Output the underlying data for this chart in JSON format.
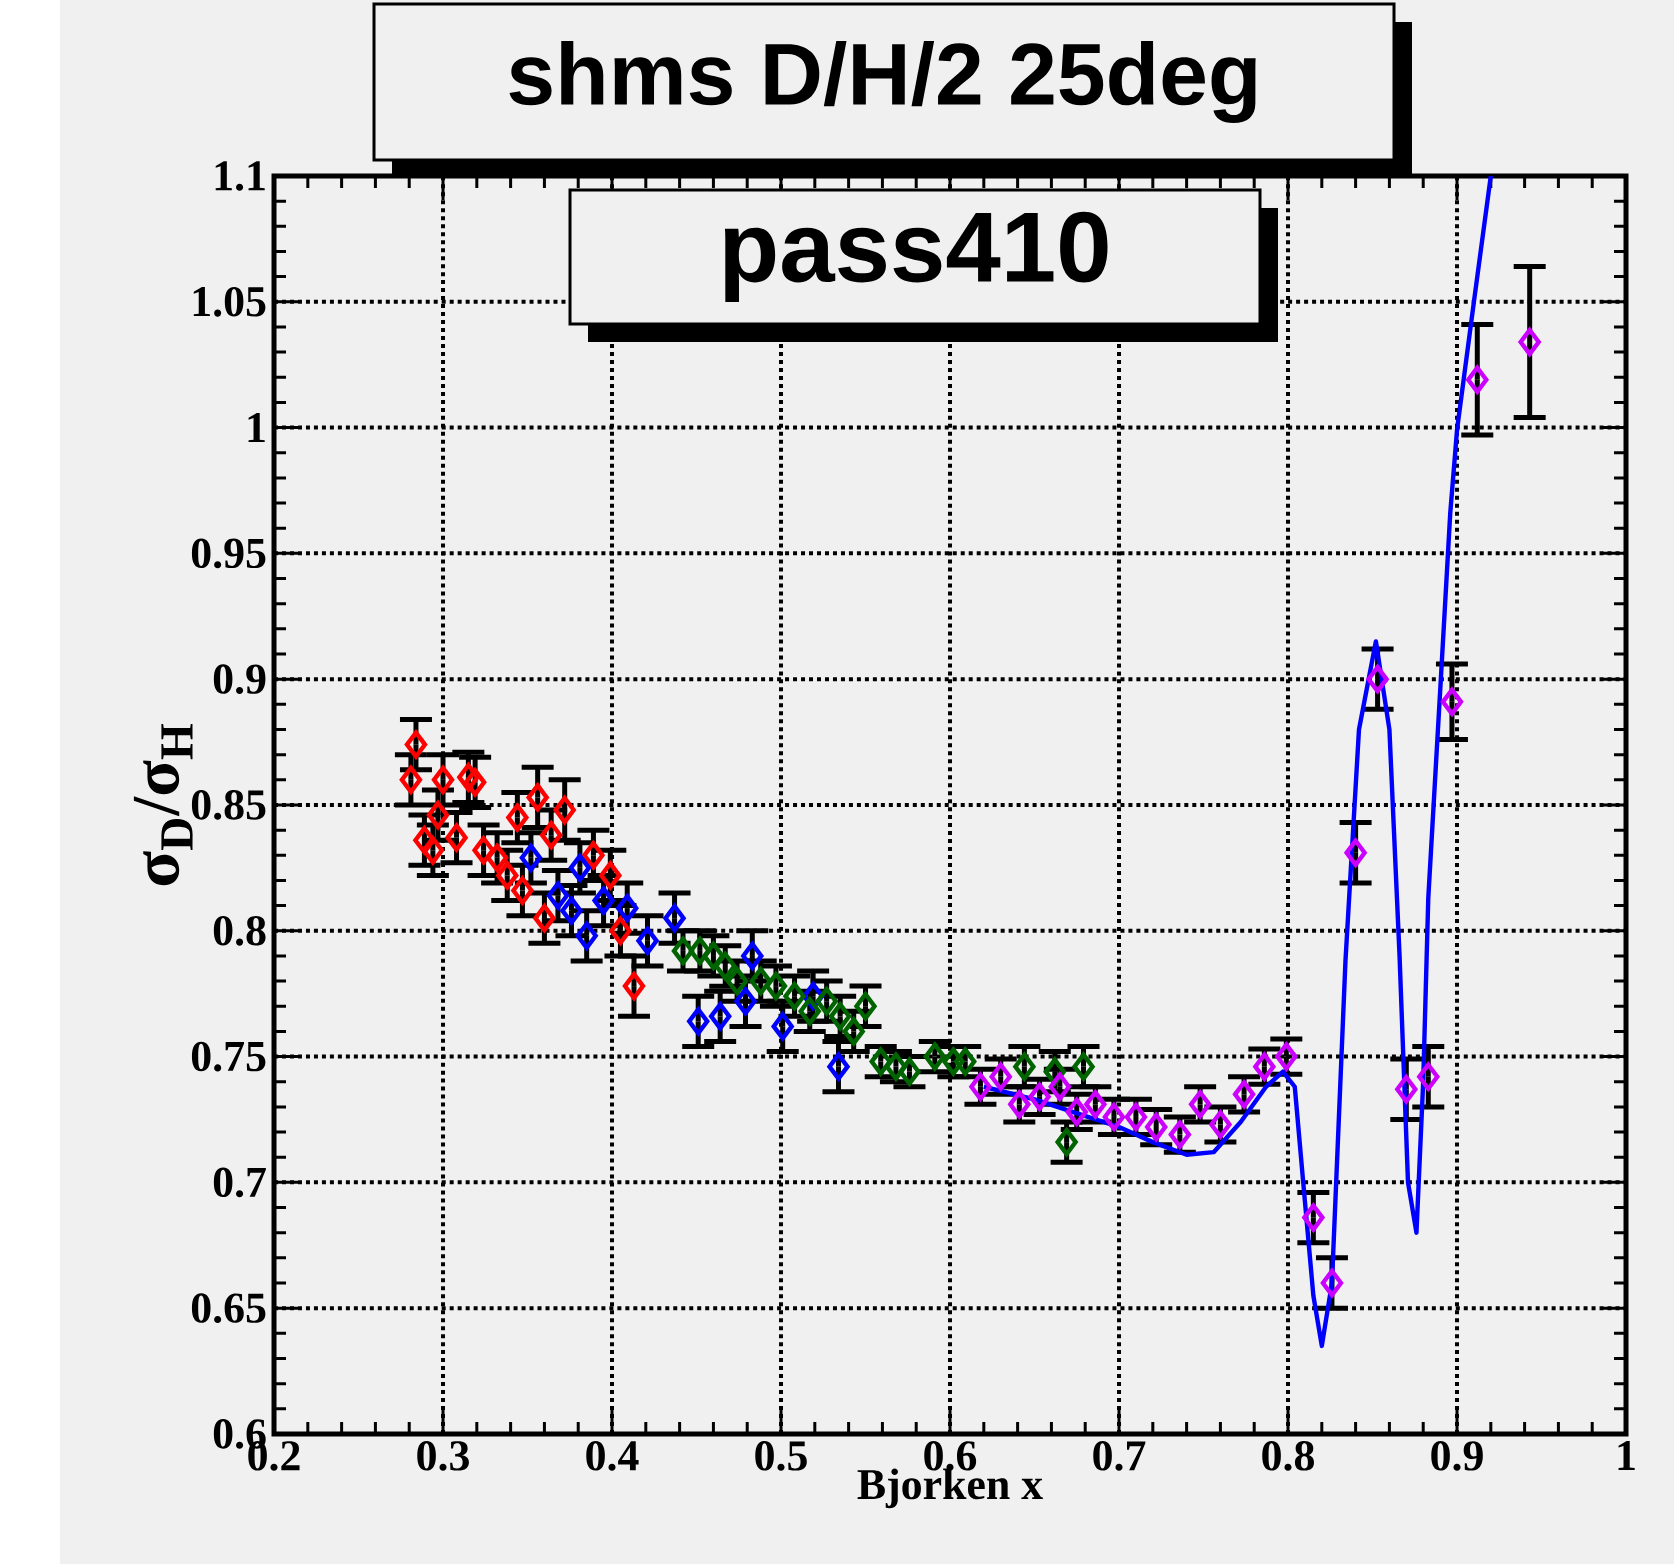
{
  "chart_data": {
    "type": "scatter",
    "title": "shms D/H/2 25deg",
    "subtitle": "pass410",
    "xlabel": "Bjorken x",
    "ylabel": "σ$_{D}$/σ$_{H}$",
    "xlim": [
      0.2,
      1
    ],
    "ylim": [
      0.6,
      1.1
    ],
    "xticks": [
      0.2,
      0.3,
      0.4,
      0.5,
      0.6,
      0.7,
      0.8,
      0.9,
      1
    ],
    "yticks": [
      0.6,
      0.65,
      0.7,
      0.75,
      0.8,
      0.85,
      0.9,
      0.95,
      1,
      1.05,
      1.1
    ],
    "grid": true,
    "marker": "diamond",
    "series": [
      {
        "color": "#ff0000",
        "x": [
          0.284,
          0.281,
          0.3,
          0.297,
          0.315,
          0.319,
          0.289,
          0.294,
          0.308,
          0.324,
          0.332,
          0.338,
          0.344,
          0.356,
          0.347,
          0.36,
          0.372,
          0.364,
          0.389,
          0.399,
          0.405,
          0.413
        ],
        "values": [
          0.874,
          0.86,
          0.86,
          0.846,
          0.861,
          0.859,
          0.836,
          0.832,
          0.837,
          0.832,
          0.829,
          0.822,
          0.845,
          0.853,
          0.816,
          0.805,
          0.848,
          0.838,
          0.83,
          0.822,
          0.8,
          0.778
        ],
        "errors": [
          0.01,
          0.01,
          0.01,
          0.01,
          0.01,
          0.01,
          0.01,
          0.01,
          0.01,
          0.01,
          0.01,
          0.01,
          0.01,
          0.012,
          0.01,
          0.01,
          0.012,
          0.01,
          0.01,
          0.01,
          0.01,
          0.012
        ]
      },
      {
        "color": "#0000ff",
        "x": [
          0.352,
          0.381,
          0.368,
          0.376,
          0.385,
          0.395,
          0.409,
          0.421,
          0.437,
          0.451,
          0.464,
          0.479,
          0.483,
          0.501,
          0.519,
          0.534
        ],
        "values": [
          0.829,
          0.825,
          0.814,
          0.808,
          0.798,
          0.812,
          0.809,
          0.796,
          0.805,
          0.764,
          0.766,
          0.772,
          0.79,
          0.762,
          0.774,
          0.746
        ],
        "errors": [
          0.01,
          0.01,
          0.01,
          0.01,
          0.01,
          0.01,
          0.01,
          0.01,
          0.01,
          0.01,
          0.01,
          0.01,
          0.01,
          0.01,
          0.01,
          0.01
        ]
      },
      {
        "color": "#006400",
        "x": [
          0.442,
          0.452,
          0.46,
          0.467,
          0.474,
          0.488,
          0.497,
          0.508,
          0.517,
          0.527,
          0.535,
          0.543,
          0.55,
          0.559,
          0.568,
          0.576,
          0.591,
          0.602,
          0.609,
          0.644,
          0.662,
          0.679,
          0.669
        ],
        "values": [
          0.792,
          0.792,
          0.79,
          0.786,
          0.78,
          0.78,
          0.778,
          0.774,
          0.768,
          0.772,
          0.766,
          0.76,
          0.77,
          0.748,
          0.746,
          0.744,
          0.75,
          0.748,
          0.748,
          0.746,
          0.744,
          0.746,
          0.716
        ],
        "errors": [
          0.008,
          0.008,
          0.008,
          0.008,
          0.008,
          0.008,
          0.008,
          0.008,
          0.008,
          0.008,
          0.008,
          0.008,
          0.008,
          0.006,
          0.006,
          0.006,
          0.006,
          0.006,
          0.006,
          0.008,
          0.008,
          0.008,
          0.008
        ]
      },
      {
        "color": "#cc00ff",
        "x": [
          0.618,
          0.63,
          0.641,
          0.653,
          0.665,
          0.675,
          0.686,
          0.697,
          0.71,
          0.722,
          0.736,
          0.748,
          0.76,
          0.774,
          0.786,
          0.799,
          0.815,
          0.826,
          0.84,
          0.853,
          0.87,
          0.883,
          0.897,
          0.912,
          0.943
        ],
        "values": [
          0.738,
          0.742,
          0.731,
          0.734,
          0.738,
          0.728,
          0.731,
          0.726,
          0.726,
          0.722,
          0.719,
          0.731,
          0.723,
          0.735,
          0.746,
          0.75,
          0.686,
          0.66,
          0.831,
          0.9,
          0.737,
          0.742,
          0.891,
          1.019,
          1.034
        ],
        "errors": [
          0.007,
          0.007,
          0.007,
          0.007,
          0.007,
          0.007,
          0.007,
          0.007,
          0.007,
          0.007,
          0.007,
          0.007,
          0.007,
          0.007,
          0.007,
          0.007,
          0.01,
          0.01,
          0.012,
          0.012,
          0.012,
          0.012,
          0.015,
          0.022,
          0.03
        ]
      },
      {
        "type": "line",
        "color": "#0000ff",
        "marker": "none",
        "x": [
          0.62,
          0.65,
          0.677,
          0.7,
          0.72,
          0.74,
          0.756,
          0.772,
          0.787,
          0.797,
          0.804,
          0.809,
          0.815,
          0.82,
          0.826,
          0.834,
          0.842,
          0.852,
          0.86,
          0.866,
          0.871,
          0.876,
          0.88,
          0.883,
          0.89,
          0.896,
          0.9,
          0.91,
          0.92
        ],
        "values": [
          0.738,
          0.733,
          0.727,
          0.722,
          0.716,
          0.711,
          0.712,
          0.724,
          0.738,
          0.744,
          0.738,
          0.7,
          0.655,
          0.635,
          0.66,
          0.788,
          0.88,
          0.915,
          0.88,
          0.79,
          0.7,
          0.68,
          0.74,
          0.813,
          0.895,
          0.966,
          0.999,
          1.05,
          1.1
        ]
      }
    ]
  }
}
